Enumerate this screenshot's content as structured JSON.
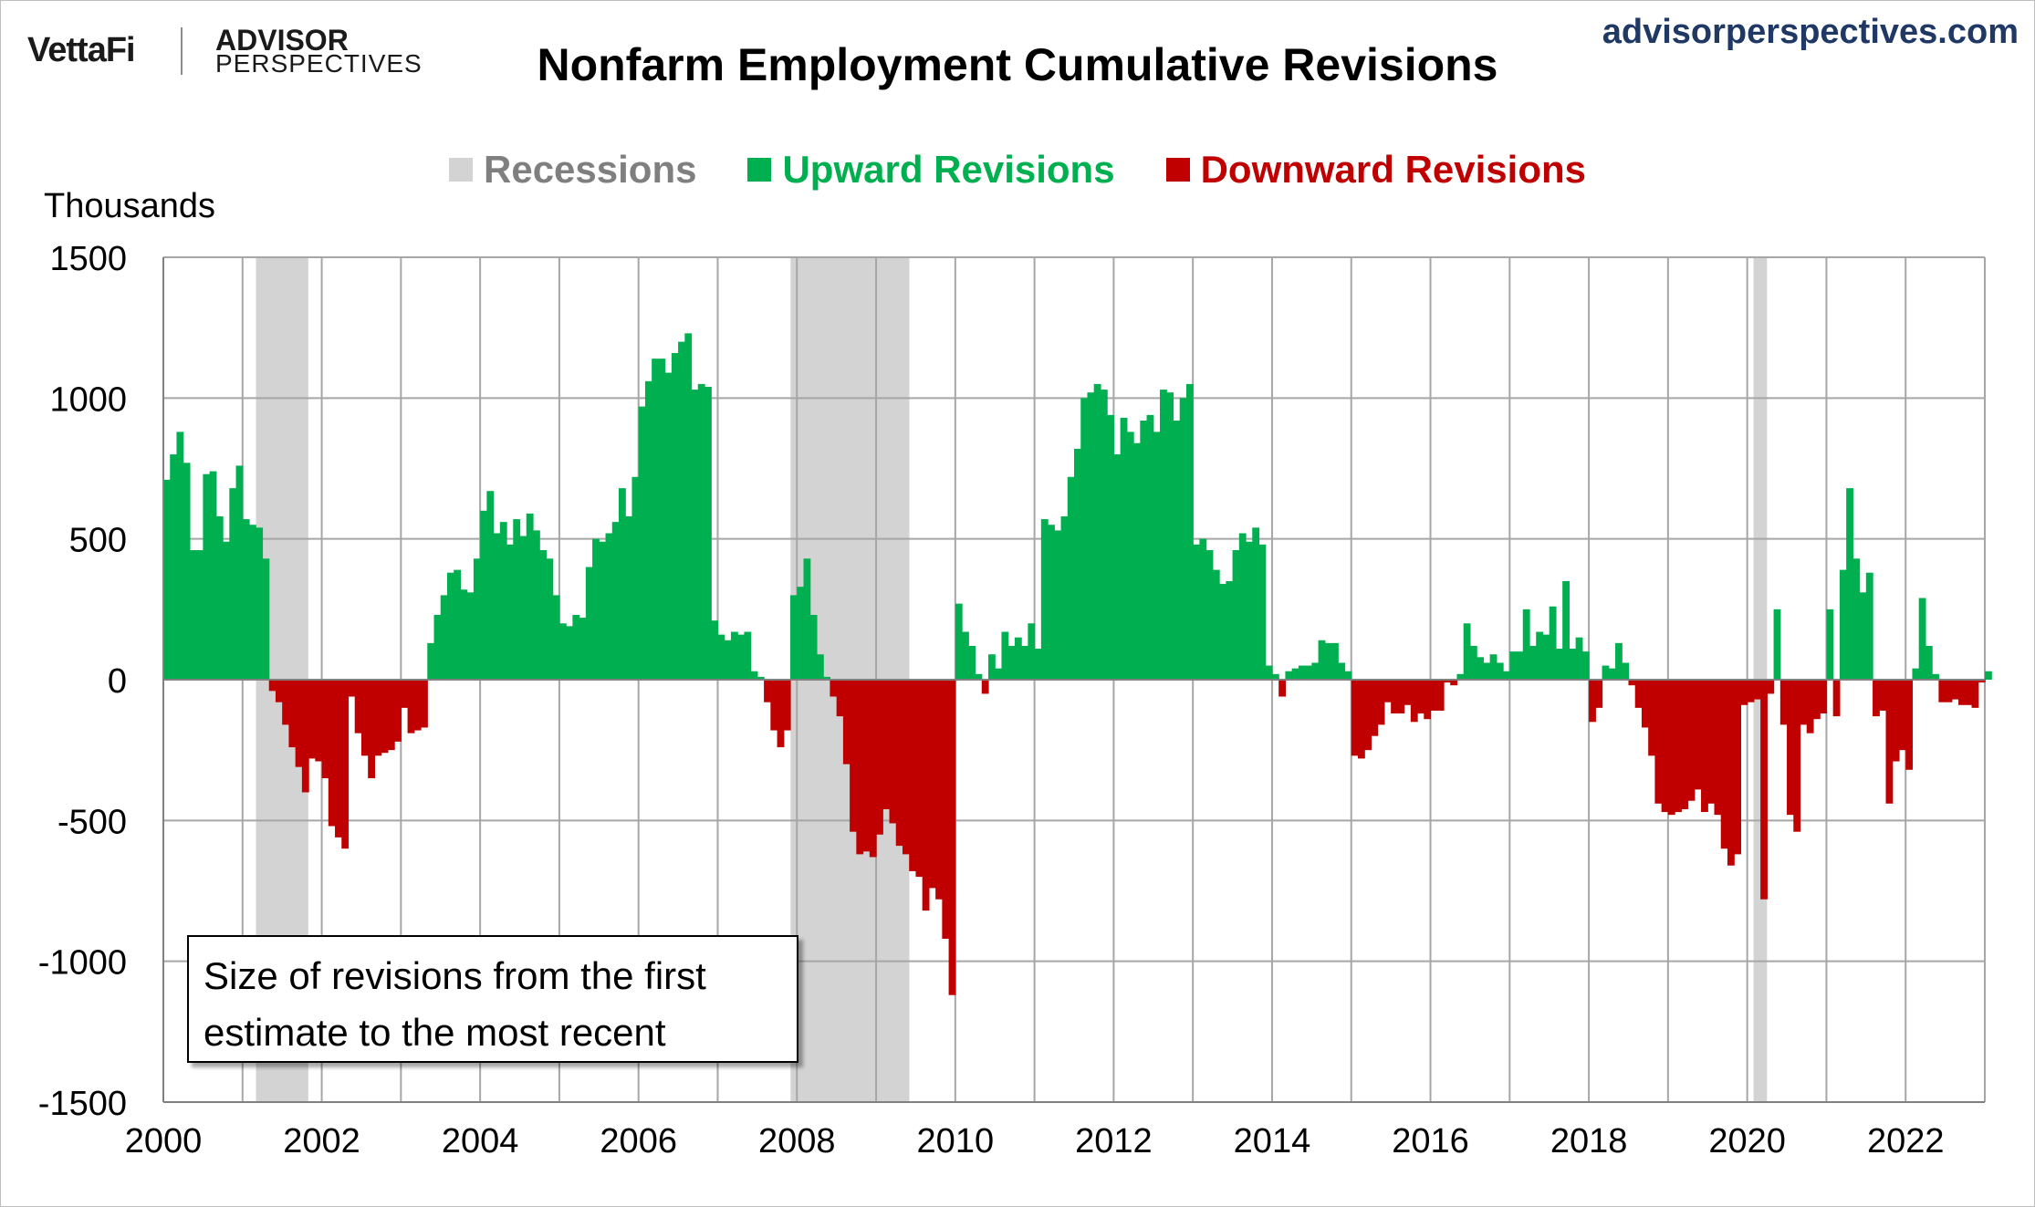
{
  "header": {
    "logo_brand": "VettaFi",
    "logo_advisor": "ADVISOR",
    "logo_perspectives": "PERSPECTIVES",
    "url": "advisorperspectives.com"
  },
  "legend": [
    {
      "label": "Recessions",
      "color": "#d3d3d3",
      "text_color": "#7f7f7f"
    },
    {
      "label": "Upward Revisions",
      "color": "#00b050",
      "text_color": "#00b050"
    },
    {
      "label": "Downward Revisions",
      "color": "#c00000",
      "text_color": "#c00000"
    }
  ],
  "note": {
    "line1": "Size of revisions from the first",
    "line2": "estimate to the most recent"
  },
  "chart_data": {
    "type": "bar",
    "title": "Nonfarm Employment Cumulative Revisions",
    "ylabel": "Thousands",
    "xlabel": "",
    "ylim": [
      -1500,
      1500
    ],
    "yticks": [
      1500,
      1000,
      500,
      0,
      -500,
      -1000,
      -1500
    ],
    "ytick_labels": [
      "1500",
      "1000",
      "500",
      "0",
      "-500",
      "-1000",
      "-1500"
    ],
    "xlim": [
      2000,
      2023
    ],
    "xticks": [
      2000,
      2002,
      2004,
      2006,
      2008,
      2010,
      2012,
      2014,
      2016,
      2018,
      2020,
      2022
    ],
    "xtick_labels": [
      "2000",
      "2002",
      "2004",
      "2006",
      "2008",
      "2010",
      "2012",
      "2014",
      "2016",
      "2018",
      "2020",
      "2022"
    ],
    "grid": true,
    "frequency": "monthly",
    "start": "2000-01",
    "colors": {
      "positive": "#00b050",
      "negative": "#c00000",
      "recession": "#d3d3d3",
      "grid": "#a6a6a6"
    },
    "recessions": [
      [
        2001.17,
        2001.83
      ],
      [
        2007.92,
        2009.42
      ],
      [
        2020.08,
        2020.25
      ]
    ],
    "series": [
      {
        "name": "Cumulative Revision",
        "values": [
          710,
          800,
          880,
          770,
          460,
          460,
          730,
          740,
          580,
          490,
          680,
          760,
          570,
          550,
          540,
          430,
          -40,
          -80,
          -160,
          -240,
          -310,
          -400,
          -280,
          -290,
          -350,
          -520,
          -560,
          -600,
          -60,
          -190,
          -270,
          -350,
          -270,
          -260,
          -250,
          -220,
          -100,
          -190,
          -180,
          -170,
          130,
          230,
          300,
          380,
          390,
          320,
          310,
          430,
          600,
          670,
          520,
          560,
          480,
          570,
          510,
          590,
          530,
          460,
          430,
          300,
          200,
          190,
          230,
          220,
          400,
          500,
          490,
          520,
          560,
          680,
          580,
          720,
          970,
          1060,
          1140,
          1140,
          1090,
          1160,
          1200,
          1230,
          1030,
          1050,
          1040,
          210,
          160,
          140,
          170,
          160,
          170,
          30,
          10,
          -80,
          -180,
          -240,
          -180,
          300,
          330,
          430,
          230,
          90,
          10,
          -60,
          -130,
          -300,
          -540,
          -620,
          -610,
          -630,
          -550,
          -460,
          -510,
          -590,
          -620,
          -680,
          -700,
          -820,
          -740,
          -780,
          -920,
          -1120,
          270,
          170,
          120,
          20,
          -50,
          90,
          40,
          170,
          120,
          150,
          120,
          200,
          110,
          570,
          550,
          530,
          580,
          720,
          820,
          1000,
          1020,
          1050,
          1030,
          940,
          800,
          930,
          880,
          840,
          920,
          940,
          880,
          1030,
          1020,
          920,
          1000,
          1050,
          480,
          500,
          460,
          390,
          340,
          350,
          460,
          520,
          490,
          540,
          480,
          50,
          20,
          -60,
          30,
          40,
          50,
          50,
          60,
          140,
          130,
          130,
          60,
          30,
          -270,
          -280,
          -250,
          -200,
          -160,
          -80,
          -120,
          -120,
          -90,
          -150,
          -120,
          -140,
          -110,
          -110,
          -10,
          -20,
          20,
          200,
          120,
          80,
          60,
          90,
          60,
          30,
          100,
          100,
          250,
          120,
          170,
          160,
          260,
          110,
          350,
          110,
          150,
          100,
          -150,
          -100,
          50,
          40,
          130,
          60,
          -20,
          -100,
          -170,
          -270,
          -440,
          -470,
          -480,
          -470,
          -460,
          -430,
          -390,
          -470,
          -440,
          -480,
          -600,
          -660,
          -620,
          -90,
          -80,
          -70,
          -780,
          -50,
          250,
          -160,
          -480,
          -540,
          -160,
          -190,
          -140,
          -120,
          250,
          -130,
          390,
          680,
          430,
          310,
          380,
          -130,
          -110,
          -440,
          -290,
          -250,
          -320,
          40,
          290,
          120,
          20,
          -80,
          -80,
          -70,
          -90,
          -90,
          -100,
          -10,
          30
        ]
      }
    ]
  }
}
